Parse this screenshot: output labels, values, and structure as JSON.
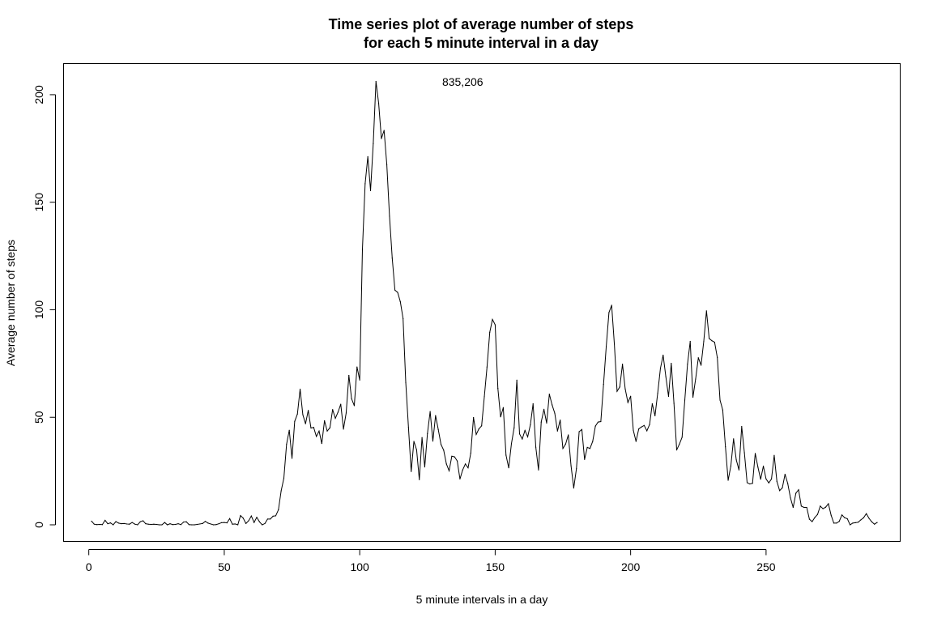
{
  "chart_data": {
    "type": "line",
    "title_line1": "Time series plot of average number of steps",
    "title_line2": "for each 5 minute interval in a day",
    "xlabel": "5 minute intervals in a day",
    "ylabel": "Average number of steps",
    "xlim": [
      1,
      288
    ],
    "ylim": [
      0,
      206
    ],
    "x_ticks": [
      0,
      50,
      100,
      150,
      200,
      250
    ],
    "y_ticks": [
      0,
      50,
      100,
      150,
      200
    ],
    "annotation": {
      "text": "835,206",
      "x": 138,
      "y": 206
    },
    "series": [
      {
        "values": [
          1.7,
          0.3,
          0.1,
          0.2,
          0.1,
          2.1,
          0.5,
          0.9,
          0,
          1.5,
          0.8,
          0.5,
          0.6,
          0.4,
          0.3,
          1.1,
          0.3,
          0,
          1.4,
          1.9,
          0.5,
          0.3,
          0.2,
          0.3,
          0.2,
          0,
          0,
          1.1,
          0,
          0.5,
          0.1,
          0.2,
          0.5,
          0.1,
          1.3,
          1.4,
          0.1,
          0,
          0,
          0.2,
          0.4,
          0.6,
          1.6,
          0.8,
          0.4,
          0,
          0.1,
          0.5,
          1,
          1.1,
          0.9,
          2.9,
          0.3,
          0.4,
          0,
          4.3,
          3.1,
          0.6,
          1.9,
          4.1,
          1.1,
          3.5,
          1.4,
          0,
          0.6,
          2.7,
          2.7,
          4,
          4.2,
          7,
          15.8,
          21.7,
          37.5,
          44,
          30.9,
          48.1,
          51.5,
          63.1,
          51.2,
          47,
          53.2,
          45,
          45.3,
          41.1,
          43.6,
          37.8,
          48.4,
          43.6,
          45.1,
          53.6,
          49.5,
          52.4,
          56.1,
          44.5,
          52,
          69.5,
          58.6,
          55.4,
          73.4,
          67.3,
          128,
          158.6,
          171.2,
          155.4,
          177.3,
          206.2,
          195.9,
          179.6,
          183.4,
          167.5,
          143.5,
          124,
          109.1,
          108.1,
          103.7,
          95.9,
          66.2,
          45.2,
          24.8,
          38.8,
          34.9,
          21,
          40.6,
          26.9,
          42.4,
          52.7,
          38.9,
          50.8,
          44.3,
          37.4,
          34.7,
          28.3,
          25.1,
          31.9,
          31.6,
          29.7,
          21.3,
          25.5,
          28.3,
          26.5,
          33.4,
          49.9,
          42,
          44.6,
          46,
          59.6,
          73.4,
          89.5,
          95.5,
          93,
          63.4,
          50.2,
          54.5,
          32.4,
          26.5,
          37.7,
          45.1,
          67.3,
          42.3,
          39.9,
          43.9,
          40.9,
          46.5,
          56.3,
          36.1,
          25.5,
          47.8,
          53.7,
          47.3,
          60.8,
          55.8,
          51.9,
          43.6,
          48.7,
          35.5,
          37.5,
          41.8,
          27.5,
          17.1,
          26.1,
          43.3,
          44.3,
          30.4,
          36,
          35.5,
          38.8,
          45.9,
          47.8,
          48,
          65.3,
          82.9,
          98.7,
          102.1,
          84,
          62.1,
          64.1,
          74.7,
          63.2,
          56.9,
          59.8,
          43.9,
          38.8,
          44.6,
          45.5,
          46.2,
          43.7,
          46.6,
          56.3,
          50.7,
          61.2,
          72.7,
          78.9,
          68.9,
          59.7,
          75.1,
          56.5,
          34.8,
          37.5,
          40.7,
          58,
          74.7,
          85.3,
          59.3,
          67.8,
          77.7,
          74.2,
          85.3,
          99.5,
          86.6,
          85.6,
          84.9,
          77.8,
          58,
          53.4,
          36.3,
          20.7,
          27.4,
          40,
          30.2,
          25.5,
          45.7,
          33.5,
          19.6,
          19,
          19.3,
          33.2,
          26.8,
          21.2,
          27.3,
          21.3,
          19.5,
          21.3,
          32.3,
          20.2,
          15.9,
          17.2,
          23.5,
          19.2,
          12.5,
          8.1,
          14.7,
          16.3,
          8.7,
          8.1,
          8.1,
          2.6,
          1.5,
          3.4,
          4.8,
          8.7,
          7.5,
          8.2,
          9.8,
          4.5,
          0.8,
          0.8,
          1.6,
          4.6,
          3.3,
          2.8,
          0,
          0.8,
          1,
          1.2,
          2.3,
          3.3,
          5.2,
          3,
          1.4,
          0.3,
          1.1
        ]
      }
    ]
  }
}
